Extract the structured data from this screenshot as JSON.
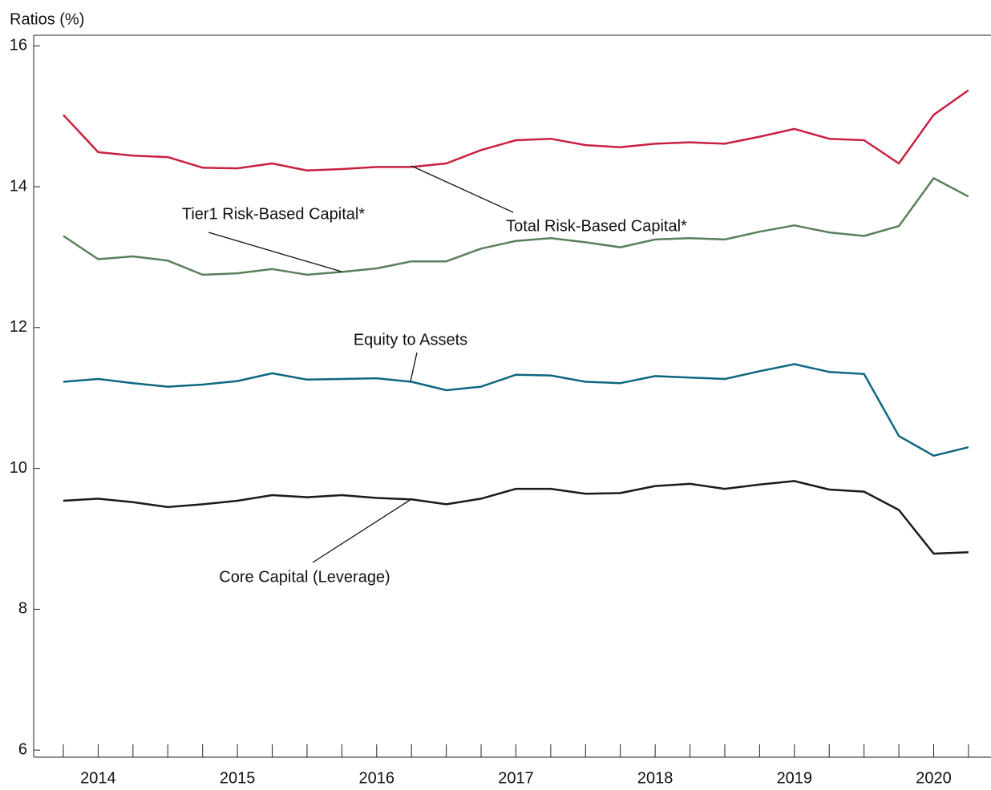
{
  "chart_data": {
    "type": "line",
    "y_axis_label": "Ratios (%)",
    "categories": [
      null,
      "2014",
      null,
      null,
      null,
      "2015",
      null,
      null,
      null,
      "2016",
      null,
      null,
      null,
      "2017",
      null,
      null,
      null,
      "2018",
      null,
      null,
      null,
      "2019",
      null,
      null,
      null,
      "2020",
      null
    ],
    "ylim": [
      5.9,
      16.15
    ],
    "yticks": [
      6,
      8,
      10,
      12,
      14,
      16
    ],
    "series": [
      {
        "name": "Total Risk-Based Capital*",
        "color": "#c8203f",
        "values": [
          15.02,
          14.49,
          14.44,
          14.42,
          14.27,
          14.26,
          14.33,
          14.23,
          14.25,
          14.28,
          14.28,
          14.33,
          14.52,
          14.66,
          14.68,
          14.59,
          14.56,
          14.61,
          14.63,
          14.61,
          14.71,
          14.82,
          14.68,
          14.66,
          14.33,
          15.02,
          15.37
        ]
      },
      {
        "name": "Tier1 Risk-Based Capital*",
        "color": "#5a7f5a",
        "values": [
          13.3,
          12.97,
          13.01,
          12.95,
          12.75,
          12.77,
          12.83,
          12.75,
          12.79,
          12.84,
          12.94,
          12.94,
          13.12,
          13.23,
          13.27,
          13.21,
          13.14,
          13.25,
          13.27,
          13.25,
          13.36,
          13.45,
          13.35,
          13.3,
          13.44,
          14.12,
          13.86
        ]
      },
      {
        "name": "Equity to Assets",
        "color": "#0e6680",
        "values": [
          11.23,
          11.27,
          11.21,
          11.16,
          11.19,
          11.24,
          11.35,
          11.26,
          11.27,
          11.28,
          11.23,
          11.11,
          11.16,
          11.33,
          11.32,
          11.23,
          11.21,
          11.31,
          11.29,
          11.27,
          11.38,
          11.48,
          11.37,
          11.34,
          10.46,
          10.18,
          10.3
        ]
      },
      {
        "name": "Core Capital (Leverage)",
        "color": "#1a1a1a",
        "values": [
          9.54,
          9.57,
          9.52,
          9.45,
          9.49,
          9.54,
          9.62,
          9.59,
          9.62,
          9.58,
          9.56,
          9.49,
          9.57,
          9.71,
          9.71,
          9.64,
          9.65,
          9.75,
          9.78,
          9.71,
          9.77,
          9.82,
          9.7,
          9.67,
          9.41,
          8.79,
          8.81
        ]
      }
    ]
  }
}
